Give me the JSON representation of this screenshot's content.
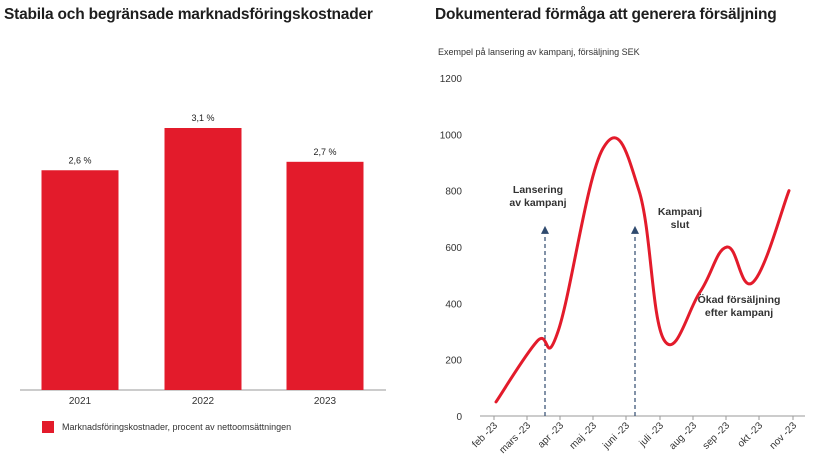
{
  "chart_data": [
    {
      "type": "bar",
      "title": "Stabila och begränsade marknadsföringskostnader",
      "categories": [
        "2021",
        "2022",
        "2023"
      ],
      "values": [
        2.6,
        3.1,
        2.7
      ],
      "value_labels": [
        "2,6 %",
        "3,1 %",
        "2,7 %"
      ],
      "legend": "Marknadsföringskostnader, procent av nettoomsättningen",
      "color": "#e31b2b",
      "ylim": [
        0,
        3.1
      ]
    },
    {
      "type": "line",
      "title": "Dokumenterad förmåga att generera försäljning",
      "subtitle": "Exempel på lansering av kampanj, försäljning SEK",
      "x": [
        "feb -23",
        "mars -23",
        "apr -23",
        "maj -23",
        "juni -23",
        "juli -23",
        "aug -23",
        "sep -23",
        "okt -23",
        "nov -23"
      ],
      "y": [
        50,
        265,
        300,
        950,
        800,
        270,
        440,
        600,
        475,
        800
      ],
      "ylim": [
        0,
        1200
      ],
      "yticks": [
        "0",
        "200",
        "400",
        "600",
        "800",
        "1000",
        "1200"
      ],
      "color": "#e31b2b",
      "annotations": [
        {
          "lines": [
            "Lansering",
            "av kampanj"
          ],
          "x_index": 1.5,
          "y": 675,
          "arrow_to_y": 675
        },
        {
          "lines": [
            "Kampanj",
            "slut"
          ],
          "x_index": 4.0,
          "y": 675,
          "arrow_to_y": 675
        },
        {
          "lines": [
            "Ökad försäljning",
            "efter kampanj"
          ],
          "x_index": 7.3,
          "y": 380
        }
      ]
    }
  ]
}
